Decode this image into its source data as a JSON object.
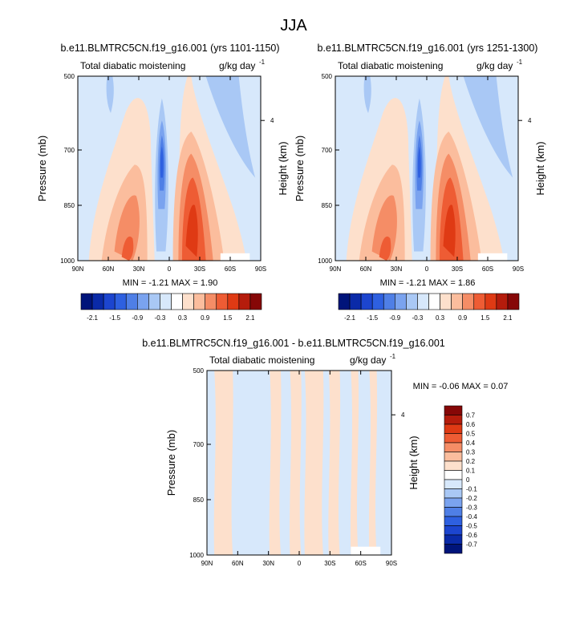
{
  "title": "JJA",
  "units_label": "g/kg day",
  "units_exponent": "-1",
  "colors": {
    "bg": "#d7e8fb",
    "warm1": "#fde0cc",
    "warm2": "#fbbd9d",
    "warm3": "#f58d66",
    "warm4": "#ee5c34",
    "warm5": "#df3a14",
    "cool1": "#a9c8f5",
    "cool2": "#7aa3ef",
    "cool3": "#4f7fe6",
    "cool4": "#2e60e0"
  },
  "chart_data": [
    {
      "type": "heatmap",
      "title": "b.e11.BLMTRC5CN.f19_g16.001 (yrs 1101-1150)",
      "field_label": "Total diabatic moistening",
      "ylabel": "Pressure (mb)",
      "ylabel_right": "Height (km)",
      "x_ticks": [
        "90N",
        "60N",
        "30N",
        "0",
        "30S",
        "60S",
        "90S"
      ],
      "y_ticks": [
        "500",
        "700",
        "850",
        "1000"
      ],
      "y_ticks_right": [
        "4"
      ],
      "min_label": "MIN =",
      "min": "-1.21",
      "max_label": "MAX =",
      "max": "1.90"
    },
    {
      "type": "heatmap",
      "title": "b.e11.BLMTRC5CN.f19_g16.001 (yrs 1251-1300)",
      "field_label": "Total diabatic moistening",
      "ylabel": "Pressure (mb)",
      "ylabel_right": "Height (km)",
      "x_ticks": [
        "90N",
        "60N",
        "30N",
        "0",
        "30S",
        "60S",
        "90S"
      ],
      "y_ticks": [
        "500",
        "700",
        "850",
        "1000"
      ],
      "y_ticks_right": [
        "4"
      ],
      "min_label": "MIN =",
      "min": "-1.21",
      "max_label": "MAX =",
      "max": "1.86"
    },
    {
      "type": "heatmap",
      "title": "b.e11.BLMTRC5CN.f19_g16.001 - b.e11.BLMTRC5CN.f19_g16.001",
      "field_label": "Total diabatic moistening",
      "ylabel": "Pressure (mb)",
      "ylabel_right": "Height (km)",
      "x_ticks": [
        "90N",
        "60N",
        "30N",
        "0",
        "30S",
        "60S",
        "90S"
      ],
      "y_ticks": [
        "500",
        "700",
        "850",
        "1000"
      ],
      "y_ticks_right": [
        "4"
      ],
      "min_label": "MIN =",
      "min": "-0.06",
      "max_label": "MAX =",
      "max": "0.07"
    }
  ],
  "colorbar_main": {
    "labels": [
      "-2.1",
      "-1.5",
      "-0.9",
      "-0.3",
      "0.3",
      "0.9",
      "1.5",
      "2.1"
    ],
    "colors": [
      "#00147a",
      "#0a2aa8",
      "#1c45cf",
      "#2e60e0",
      "#4f7fe6",
      "#7aa3ef",
      "#a9c8f5",
      "#d7e8fb",
      "#ffffff",
      "#fde0cc",
      "#fbbd9d",
      "#f58d66",
      "#ee5c34",
      "#df3a14",
      "#b51c0c",
      "#860707"
    ]
  },
  "colorbar_diff": {
    "labels": [
      "0.7",
      "0.6",
      "0.5",
      "0.4",
      "0.3",
      "0.2",
      "0.1",
      "0",
      "-0.1",
      "-0.2",
      "-0.3",
      "-0.4",
      "-0.5",
      "-0.6",
      "-0.7"
    ],
    "colors": [
      "#860707",
      "#b51c0c",
      "#df3a14",
      "#ee5c34",
      "#f58d66",
      "#fbbd9d",
      "#fde0cc",
      "#ffffff",
      "#d7e8fb",
      "#a9c8f5",
      "#7aa3ef",
      "#4f7fe6",
      "#2e60e0",
      "#1c45cf",
      "#0a2aa8",
      "#00147a"
    ]
  }
}
